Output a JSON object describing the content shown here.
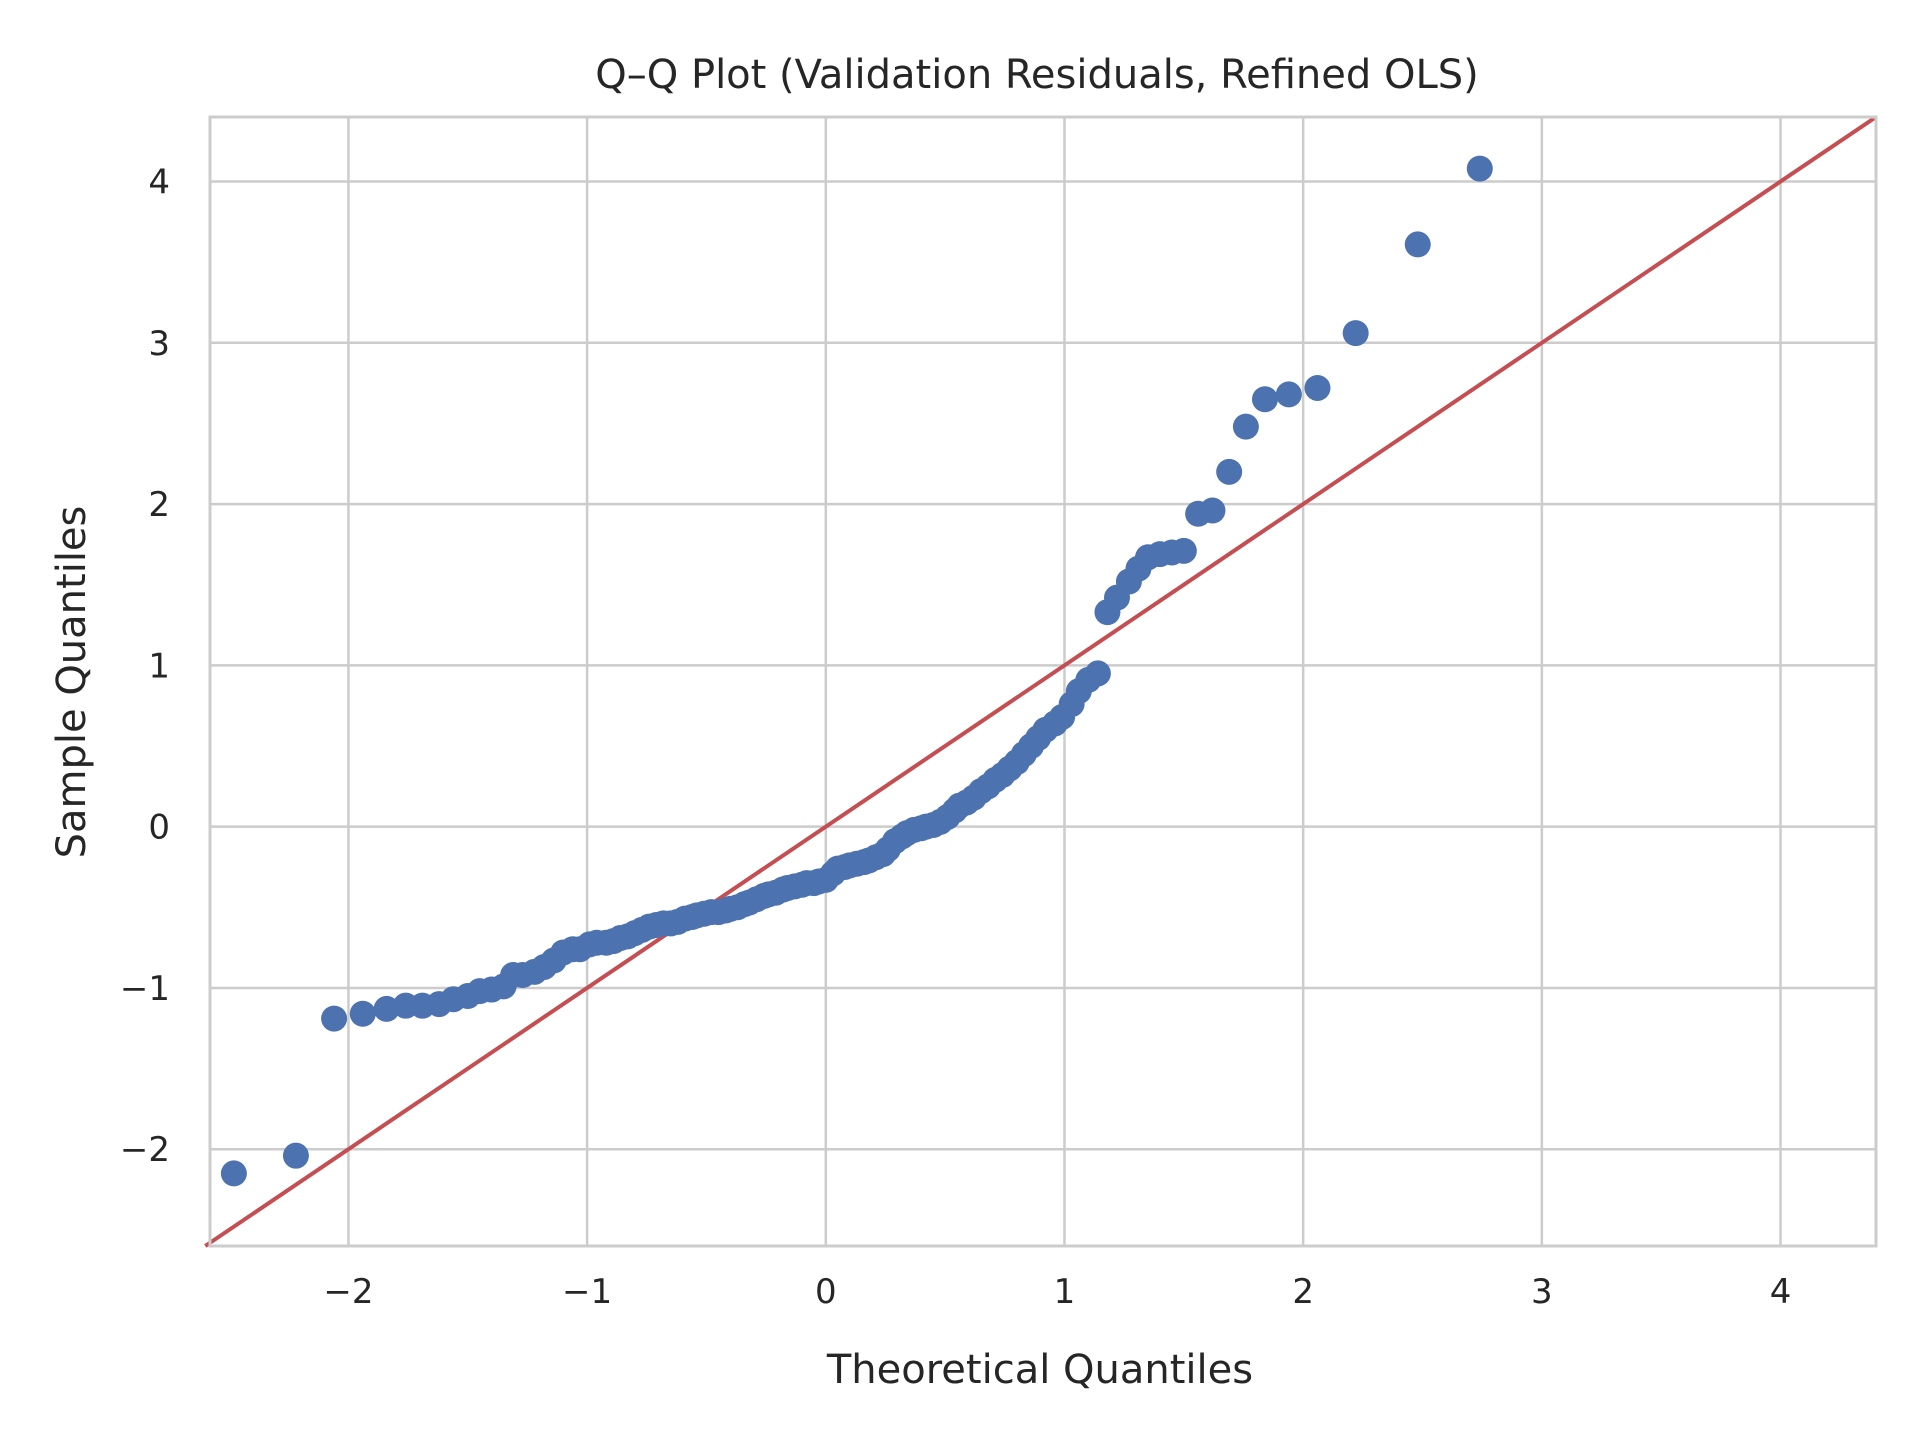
{
  "chart_data": {
    "type": "scatter",
    "title": "Q–Q Plot (Validation Residuals, Refined OLS)",
    "xlabel": "Theoretical Quantiles",
    "ylabel": "Sample Quantiles",
    "xlim": [
      -2.58,
      4.4
    ],
    "ylim": [
      -2.6,
      4.4
    ],
    "xticks": [
      -2,
      -1,
      0,
      1,
      2,
      3,
      4
    ],
    "yticks": [
      -2,
      -1,
      0,
      1,
      2,
      3,
      4
    ],
    "xtick_labels": [
      "−2",
      "−1",
      "0",
      "1",
      "2",
      "3",
      "4"
    ],
    "ytick_labels": [
      "−2",
      "−1",
      "0",
      "1",
      "2",
      "3",
      "4"
    ],
    "grid": true,
    "colors": {
      "points": "#4c72b0",
      "reference_line": "#c44e52",
      "grid": "#cccccc"
    },
    "reference_line": {
      "points": [
        [
          -2.6,
          -2.6
        ],
        [
          4.4,
          4.4
        ]
      ]
    },
    "points": [
      [
        -2.48,
        -2.15
      ],
      [
        -2.22,
        -2.04
      ],
      [
        -2.06,
        -1.19
      ],
      [
        -1.94,
        -1.16
      ],
      [
        -1.84,
        -1.13
      ],
      [
        -1.76,
        -1.11
      ],
      [
        -1.69,
        -1.11
      ],
      [
        -1.62,
        -1.1
      ],
      [
        -1.56,
        -1.07
      ],
      [
        -1.5,
        -1.05
      ],
      [
        -1.45,
        -1.02
      ],
      [
        -1.4,
        -1.01
      ],
      [
        -1.35,
        -0.99
      ],
      [
        -1.31,
        -0.92
      ],
      [
        -1.27,
        -0.92
      ],
      [
        -1.22,
        -0.9
      ],
      [
        -1.18,
        -0.87
      ],
      [
        -1.14,
        -0.83
      ],
      [
        -1.1,
        -0.78
      ],
      [
        -1.06,
        -0.76
      ],
      [
        -1.03,
        -0.76
      ],
      [
        -0.99,
        -0.73
      ],
      [
        -0.96,
        -0.72
      ],
      [
        -0.92,
        -0.72
      ],
      [
        -0.89,
        -0.71
      ],
      [
        -0.86,
        -0.69
      ],
      [
        -0.83,
        -0.68
      ],
      [
        -0.8,
        -0.66
      ],
      [
        -0.77,
        -0.64
      ],
      [
        -0.74,
        -0.62
      ],
      [
        -0.71,
        -0.61
      ],
      [
        -0.68,
        -0.6
      ],
      [
        -0.65,
        -0.6
      ],
      [
        -0.62,
        -0.59
      ],
      [
        -0.59,
        -0.57
      ],
      [
        -0.56,
        -0.56
      ],
      [
        -0.54,
        -0.55
      ],
      [
        -0.51,
        -0.54
      ],
      [
        -0.48,
        -0.53
      ],
      [
        -0.45,
        -0.53
      ],
      [
        -0.42,
        -0.52
      ],
      [
        -0.4,
        -0.51
      ],
      [
        -0.37,
        -0.5
      ],
      [
        -0.34,
        -0.48
      ],
      [
        -0.32,
        -0.47
      ],
      [
        -0.29,
        -0.45
      ],
      [
        -0.26,
        -0.43
      ],
      [
        -0.24,
        -0.42
      ],
      [
        -0.21,
        -0.41
      ],
      [
        -0.18,
        -0.39
      ],
      [
        -0.16,
        -0.38
      ],
      [
        -0.13,
        -0.37
      ],
      [
        -0.1,
        -0.36
      ],
      [
        -0.08,
        -0.35
      ],
      [
        -0.05,
        -0.35
      ],
      [
        -0.03,
        -0.34
      ],
      [
        0.0,
        -0.33
      ],
      [
        0.03,
        -0.29
      ],
      [
        0.05,
        -0.26
      ],
      [
        0.08,
        -0.25
      ],
      [
        0.1,
        -0.24
      ],
      [
        0.13,
        -0.23
      ],
      [
        0.16,
        -0.22
      ],
      [
        0.18,
        -0.21
      ],
      [
        0.21,
        -0.19
      ],
      [
        0.24,
        -0.17
      ],
      [
        0.26,
        -0.14
      ],
      [
        0.29,
        -0.09
      ],
      [
        0.32,
        -0.06
      ],
      [
        0.34,
        -0.04
      ],
      [
        0.37,
        -0.02
      ],
      [
        0.4,
        -0.01
      ],
      [
        0.42,
        0.0
      ],
      [
        0.45,
        0.01
      ],
      [
        0.48,
        0.03
      ],
      [
        0.51,
        0.06
      ],
      [
        0.54,
        0.1
      ],
      [
        0.56,
        0.13
      ],
      [
        0.59,
        0.15
      ],
      [
        0.62,
        0.18
      ],
      [
        0.65,
        0.22
      ],
      [
        0.68,
        0.25
      ],
      [
        0.71,
        0.29
      ],
      [
        0.74,
        0.32
      ],
      [
        0.77,
        0.36
      ],
      [
        0.8,
        0.4
      ],
      [
        0.83,
        0.45
      ],
      [
        0.86,
        0.5
      ],
      [
        0.89,
        0.55
      ],
      [
        0.92,
        0.6
      ],
      [
        0.96,
        0.64
      ],
      [
        0.99,
        0.68
      ],
      [
        1.03,
        0.76
      ],
      [
        1.06,
        0.84
      ],
      [
        1.1,
        0.91
      ],
      [
        1.14,
        0.95
      ],
      [
        1.18,
        1.33
      ],
      [
        1.22,
        1.42
      ],
      [
        1.27,
        1.52
      ],
      [
        1.31,
        1.6
      ],
      [
        1.35,
        1.67
      ],
      [
        1.4,
        1.69
      ],
      [
        1.45,
        1.7
      ],
      [
        1.5,
        1.71
      ],
      [
        1.56,
        1.94
      ],
      [
        1.62,
        1.96
      ],
      [
        1.69,
        2.2
      ],
      [
        1.76,
        2.48
      ],
      [
        1.84,
        2.65
      ],
      [
        1.94,
        2.68
      ],
      [
        2.06,
        2.72
      ],
      [
        2.22,
        3.06
      ],
      [
        2.48,
        3.61
      ],
      [
        2.74,
        4.08
      ]
    ]
  }
}
